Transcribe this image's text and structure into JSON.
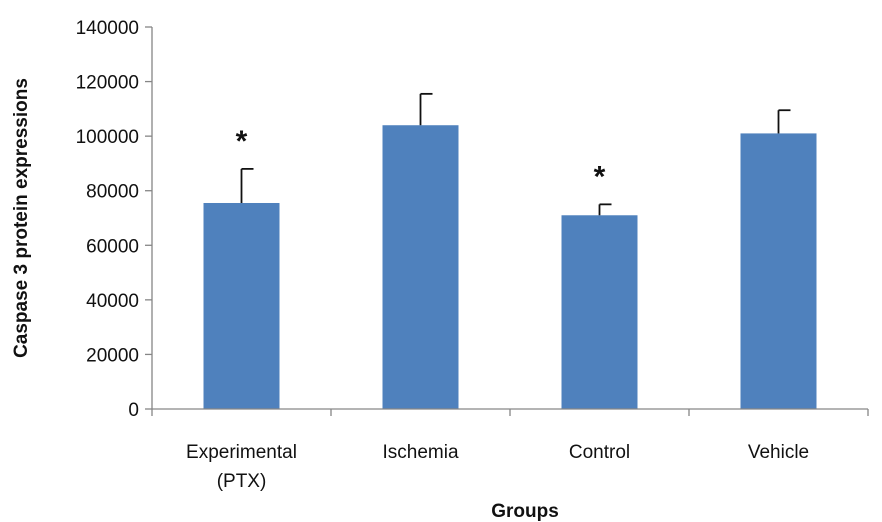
{
  "chart_data": {
    "type": "bar",
    "categories": [
      [
        "Experimental",
        "(PTX)"
      ],
      [
        "Ischemia"
      ],
      [
        "Control"
      ],
      [
        "Vehicle"
      ]
    ],
    "values": [
      75500,
      104000,
      71000,
      101000
    ],
    "error_plus": [
      12500,
      11500,
      4000,
      8500
    ],
    "annotations": [
      "*",
      "",
      "*",
      ""
    ],
    "title": "",
    "xlabel": "Groups",
    "ylabel": "Caspase 3 protein expressions",
    "ylim": [
      0,
      140000
    ],
    "yticks": [
      0,
      20000,
      40000,
      60000,
      80000,
      100000,
      120000,
      140000
    ],
    "grid": false,
    "legend": "none",
    "bar_color": "#4f81bd"
  }
}
